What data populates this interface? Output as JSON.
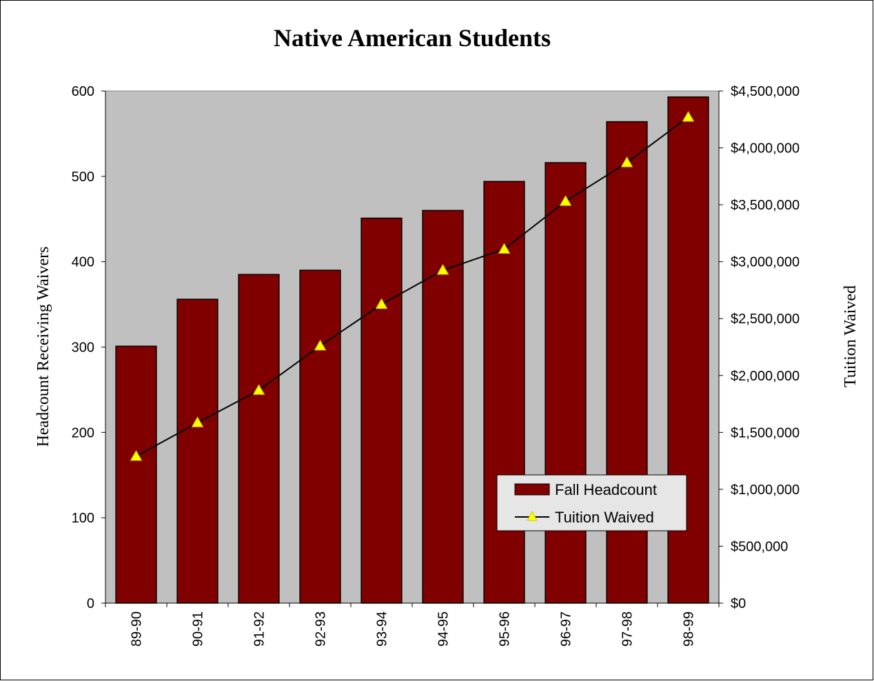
{
  "chart_data": {
    "type": "bar",
    "title": "Native American Students",
    "categories": [
      "89-90",
      "90-91",
      "91-92",
      "92-93",
      "93-94",
      "94-95",
      "95-96",
      "96-97",
      "97-98",
      "98-99"
    ],
    "series": [
      {
        "name": "Fall Headcount",
        "type": "bar",
        "axis": "left",
        "color": "#800000",
        "values": [
          301,
          356,
          385,
          390,
          451,
          460,
          494,
          516,
          564,
          593
        ]
      },
      {
        "name": "Tuition Waived",
        "type": "line",
        "axis": "right",
        "color": "#000000",
        "marker": "triangle",
        "marker_color": "#FFFF00",
        "values": [
          1290000,
          1585000,
          1870000,
          2260000,
          2625000,
          2925000,
          3110000,
          3530000,
          3870000,
          4270000
        ]
      }
    ],
    "ylabel": "Headcount Receiving Waivers",
    "ylim": [
      0,
      600
    ],
    "yticks": [
      "0",
      "100",
      "200",
      "300",
      "400",
      "500",
      "600"
    ],
    "y2label": "Tuition Waived",
    "y2lim": [
      0,
      4500000
    ],
    "y2ticks": [
      "$0",
      "$500,000",
      "$1,000,000",
      "$1,500,000",
      "$2,000,000",
      "$2,500,000",
      "$3,000,000",
      "$3,500,000",
      "$4,000,000",
      "$4,500,000"
    ],
    "plot_background": "#C0C0C0",
    "grid": false,
    "legend_position": "bottom-right"
  }
}
